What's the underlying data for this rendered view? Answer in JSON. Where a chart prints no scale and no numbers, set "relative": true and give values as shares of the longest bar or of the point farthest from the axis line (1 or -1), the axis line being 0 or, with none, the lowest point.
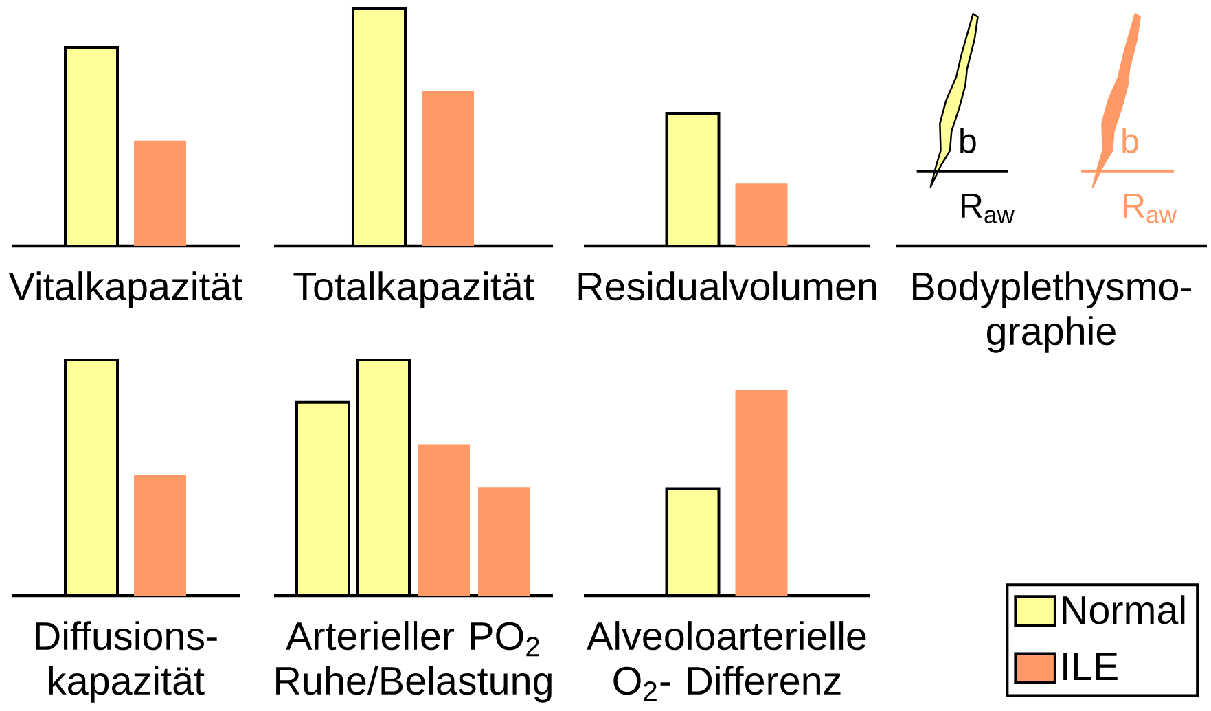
{
  "chart_data": [
    {
      "type": "bar",
      "xlabel": "Vitalkapazität",
      "relative": true,
      "categories": [
        null
      ],
      "series": [
        {
          "color": "#ffff99",
          "values": [
            1
          ]
        },
        {
          "color": "#ff9966",
          "values": [
            0.53
          ]
        }
      ]
    },
    {
      "type": "bar",
      "xlabel": "Totalkapazität",
      "relative": true,
      "categories": [
        null
      ],
      "series": [
        {
          "color": "#ffff99",
          "values": [
            1
          ]
        },
        {
          "color": "#ff9966",
          "values": [
            0.65
          ]
        }
      ]
    },
    {
      "type": "bar",
      "xlabel": "Residualvolumen",
      "relative": true,
      "categories": [
        null
      ],
      "series": [
        {
          "color": "#ffff99",
          "values": [
            1
          ]
        },
        {
          "color": "#ff9966",
          "values": [
            0.47
          ]
        }
      ]
    },
    {
      "type": "other",
      "xlabel": "Bodyplethysmo-graphie",
      "annotations": [
        "b",
        "R$_{aw}$",
        "b",
        "R$_{aw}$"
      ]
    },
    {
      "type": "bar",
      "xlabel": "Diffusions-kapazität",
      "relative": true,
      "categories": [
        null
      ],
      "series": [
        {
          "color": "#ffff99",
          "values": [
            1
          ]
        },
        {
          "color": "#ff9966",
          "values": [
            0.51
          ]
        }
      ]
    },
    {
      "type": "bar",
      "xlabel": "Arterieller PO$_{2}$ Ruhe/Belastung",
      "relative": true,
      "categories": [
        null,
        null,
        null,
        null
      ],
      "values": [
        0.82,
        1,
        0.64,
        0.46
      ],
      "colors": [
        "#ffff99",
        "#ffff99",
        "#ff9966",
        "#ff9966"
      ]
    },
    {
      "type": "bar",
      "xlabel": "Alveoloarterielle O$_{2}$- Differenz",
      "relative": true,
      "legend": "right",
      "categories": [
        null
      ],
      "series": [
        {
          "name": "Normal",
          "color": "#ffff99",
          "values": [
            0.52
          ]
        },
        {
          "name": "ILE",
          "color": "#ff9966",
          "values": [
            1
          ]
        }
      ]
    }
  ]
}
